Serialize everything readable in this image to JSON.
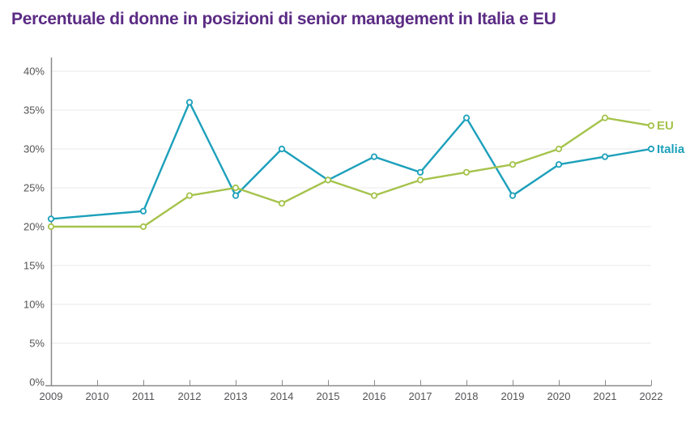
{
  "title": "Percentuale di donne in posizioni di senior management in Italia e EU",
  "palette": {
    "title": "#5b2b84",
    "italia": "#1ca0bb",
    "eu": "#a5c34b",
    "axis_line": "#8a8a8a",
    "gridline": "#e9e9e9",
    "tick_text": "#545457",
    "marker_fill": "#ffffff",
    "background": "#ffffff"
  },
  "chart_data": {
    "type": "line",
    "x": [
      2009,
      2010,
      2011,
      2012,
      2013,
      2014,
      2015,
      2016,
      2017,
      2018,
      2019,
      2020,
      2021,
      2022
    ],
    "series": [
      {
        "name": "Italia",
        "color_key": "italia",
        "values": [
          21,
          null,
          22,
          36,
          24,
          30,
          26,
          29,
          27,
          34,
          24,
          28,
          29,
          30
        ]
      },
      {
        "name": "EU",
        "color_key": "eu",
        "values": [
          20,
          null,
          20,
          24,
          25,
          23,
          26,
          24,
          26,
          27,
          28,
          30,
          34,
          33
        ]
      }
    ],
    "title": "Percentuale di donne in posizioni di senior management in Italia e EU",
    "xlabel": "",
    "ylabel": "",
    "ylim": [
      0,
      40
    ],
    "ytick_step": 5,
    "ytick_suffix": "%",
    "grid": true,
    "markers": "open-circle",
    "legend_position": "right-end-of-line",
    "missing_data_years": [
      2010
    ]
  }
}
